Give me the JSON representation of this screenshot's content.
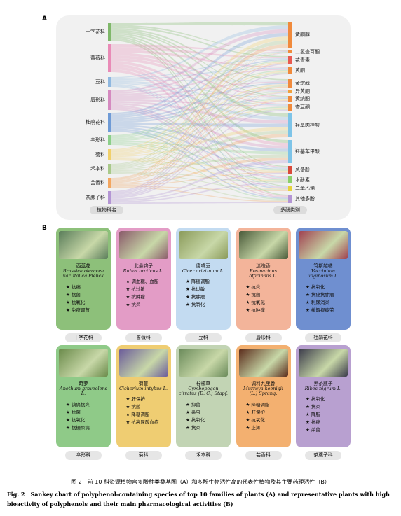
{
  "panel_a": {
    "label": "A",
    "left_nodes": [
      "十字花科",
      "蔷薇科",
      "豆科",
      "唇形科",
      "杜鹃花科",
      "伞形科",
      "菊科",
      "禾本科",
      "芸香科",
      "茶藨子科"
    ],
    "right_nodes": [
      "黄酮醇",
      "二氢查耳酮",
      "花青素",
      "黄酮",
      "黄烷醇",
      "异黄酮",
      "黄烷酮",
      "查耳酮",
      "羟基肉桂酸",
      "羟基苯甲酸",
      "总多酚",
      "木酚素",
      "二苯乙烯",
      "其他多酚"
    ],
    "left_axis_label": "植物科名",
    "right_axis_label": "多酚类别"
  },
  "panel_b": {
    "label": "B",
    "cards": [
      {
        "name": "西蓝花",
        "latin": "Brassica oleracea var. italica Plenck",
        "activities": [
          "抗癌",
          "抗菌",
          "抗氧化",
          "免疫调节"
        ],
        "family": "十字花科"
      },
      {
        "name": "北悬钩子",
        "latin": "Rubus arcticus L.",
        "activities": [
          "调血糖、血脂",
          "抗过敏",
          "抗肿瘤",
          "抗炎"
        ],
        "family": "蔷薇科"
      },
      {
        "name": "鹰嘴豆",
        "latin": "Cicer arietinum L.",
        "activities": [
          "降糖调脂",
          "抗过敏",
          "抗肿瘤",
          "抗氧化"
        ],
        "family": "豆科"
      },
      {
        "name": "迷迭香",
        "latin": "Rosmarinus officinalis L.",
        "activities": [
          "抗炎",
          "抗菌",
          "抗氧化",
          "抗肿瘤"
        ],
        "family": "唇形科"
      },
      {
        "name": "笃斯越橘",
        "latin": "Vaccinium uliginosum L.",
        "activities": [
          "抗氧化",
          "抗癌抗肿瘤",
          "利尿消炎",
          "缓解视疲劳"
        ],
        "family": "杜鹃花科"
      },
      {
        "name": "莳萝",
        "latin": "Anethum graveolens L.",
        "activities": [
          "镇痛抗炎",
          "抗菌",
          "抗氧化",
          "抗糖尿病"
        ],
        "family": "伞形科"
      },
      {
        "name": "菊苣",
        "latin": "Cichorium intybus L.",
        "activities": [
          "肝保护",
          "抗菌",
          "降糖调脂",
          "抗高尿酸血症"
        ],
        "family": "菊科"
      },
      {
        "name": "柠檬草",
        "latin": "Cymbopogon citratus (D. C.) Stapf.",
        "activities": [
          "抑菌",
          "杀虫",
          "抗氧化",
          "抗炎"
        ],
        "family": "禾本科"
      },
      {
        "name": "调料九里香",
        "latin": "Murraya koenigii (L.) Sprang.",
        "activities": [
          "降糖调脂",
          "肝保护",
          "抗氧化",
          "止泻"
        ],
        "family": "芸香科"
      },
      {
        "name": "黑茶藨子",
        "latin": "Ribes nigrum L.",
        "activities": [
          "抗氧化",
          "抗炎",
          "降脂",
          "抗癌",
          "杀菌"
        ],
        "family": "茶藨子科"
      }
    ]
  },
  "caption": {
    "zh": "图 2　前 10 科资源植物含多酚种类桑基图（A）和多酚生物活性高的代表性植物及其主要药理活性（B）",
    "en": "Fig. 2　Sankey chart of polyphenol-containing species of top 10 families of plants (A) and representative plants with high bioactivity of polyphenols and their main pharmacological activities (B)"
  }
}
